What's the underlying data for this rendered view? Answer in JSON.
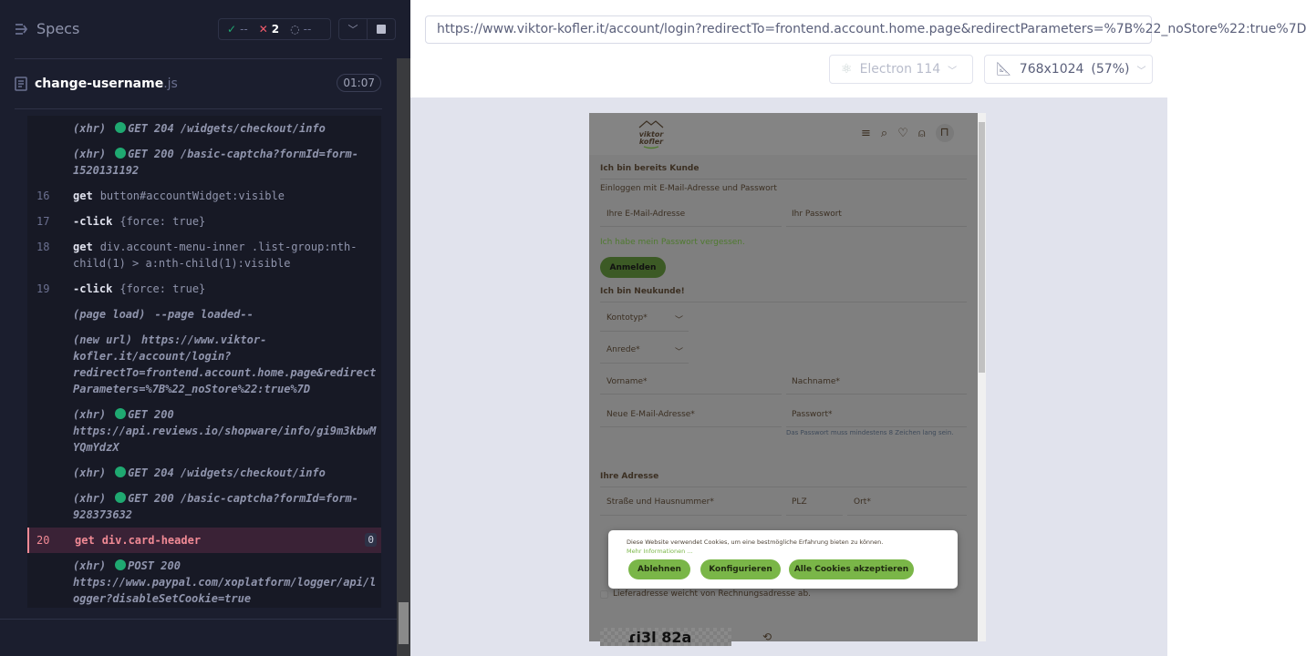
{
  "reporter": {
    "specs_label": "Specs",
    "stats": {
      "passed": "--",
      "failed": "2",
      "pending": "--"
    },
    "spec_file": {
      "name": "change-username",
      "ext": ".js",
      "duration": "01:07"
    },
    "commands": [
      {
        "type": "event",
        "label": "(xhr)",
        "dot": true,
        "msg": "GET 204 /widgets/checkout/info"
      },
      {
        "type": "event",
        "label": "(xhr)",
        "dot": true,
        "msg": "GET 200 /basic-captcha?formId=form-1520131192"
      },
      {
        "type": "cmd",
        "num": "16",
        "cmd": "get",
        "msg": "button#accountWidget:visible"
      },
      {
        "type": "cmd",
        "num": "17",
        "cmd": "-click",
        "msg": "{force: true}"
      },
      {
        "type": "cmd",
        "num": "18",
        "cmd": "get",
        "msg": "div.account-menu-inner .list-group:nth-child(1) > a:nth-child(1):visible"
      },
      {
        "type": "cmd",
        "num": "19",
        "cmd": "-click",
        "msg": "{force: true}"
      },
      {
        "type": "event",
        "label": "(page load)",
        "dot": false,
        "msg": "--page loaded--"
      },
      {
        "type": "event",
        "label": "(new url)",
        "dot": false,
        "msg": "https://www.viktor-kofler.it/account/login?redirectTo=frontend.account.home.page&redirectParameters=%7B%22_noStore%22:true%7D"
      },
      {
        "type": "event",
        "label": "(xhr)",
        "dot": true,
        "msg": "GET 200 https://api.reviews.io/shopware/info/gi9m3kbwMYQmYdzX"
      },
      {
        "type": "event",
        "label": "(xhr)",
        "dot": true,
        "msg": "GET 204 /widgets/checkout/info"
      },
      {
        "type": "event",
        "label": "(xhr)",
        "dot": true,
        "msg": "GET 200 /basic-captcha?formId=form-928373632"
      },
      {
        "type": "fail",
        "num": "20",
        "cmd": "get",
        "msg": "div.card-header",
        "badge": "0"
      },
      {
        "type": "event",
        "label": "(xhr)",
        "dot": true,
        "msg": "POST 200 https://www.paypal.com/xoplatform/logger/api/logger?disableSetCookie=true"
      }
    ]
  },
  "browser": {
    "url": "https://www.viktor-kofler.it/account/login?redirectTo=frontend.account.home.page&redirectParameters=%7B%22_noStore%22:true%7D",
    "browser_name": "Electron 114",
    "viewport": "768x1024",
    "scale": "(57%)"
  },
  "site": {
    "logo_text": "viktor kofler",
    "login": {
      "heading": "Ich bin bereits Kunde",
      "subtitle": "Einloggen mit E-Mail-Adresse und Passwort",
      "email_placeholder": "Ihre E-Mail-Adresse",
      "password_placeholder": "Ihr Passwort",
      "forgot": "Ich habe mein Passwort vergessen.",
      "submit": "Anmelden"
    },
    "register": {
      "heading": "Ich bin Neukunde!",
      "account_type": "Kontotyp*",
      "salutation": "Anrede*",
      "first_name": "Vorname*",
      "last_name": "Nachname*",
      "email": "Neue E-Mail-Adresse*",
      "password": "Passwort*",
      "password_hint": "Das Passwort muss mindestens 8 Zeichen lang sein.",
      "address_heading": "Ihre Adresse",
      "street": "Straße und Hausnummer*",
      "zip": "PLZ",
      "city": "Ort*",
      "different_shipping": "Lieferadresse weicht von Rechnungsadresse ab."
    },
    "cookie": {
      "text": "Diese Website verwendet Cookies, um eine bestmögliche Erfahrung bieten zu können.",
      "more": "Mehr Informationen ...",
      "decline": "Ablehnen",
      "configure": "Konfigurieren",
      "accept_all": "Alle Cookies akzeptieren"
    }
  },
  "colors": {
    "fail": "#f18a95",
    "pass": "#1fa971",
    "site_green": "#7ab648",
    "site_dark_green": "#3c5a25"
  }
}
